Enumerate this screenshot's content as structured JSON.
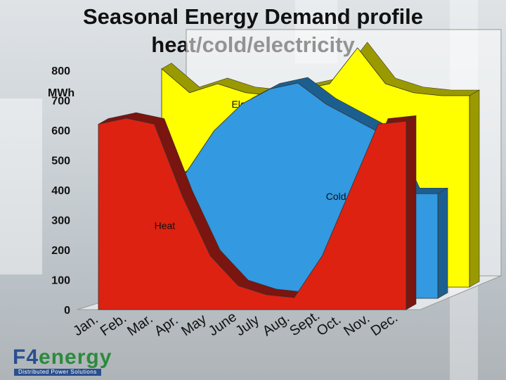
{
  "title_line1": "Seasonal Energy Demand profile",
  "title_line2": "heat/cold/electricity",
  "logo": {
    "main_prefix": "F4",
    "main_suffix": "energy",
    "tagline": "Distributed Power Solutions"
  },
  "chart_data": {
    "type": "area",
    "title": "Seasonal Energy Demand profile heat/cold/electricity",
    "ylabel": "MWh",
    "xlabel": "",
    "ylim": [
      0,
      800
    ],
    "yticks": [
      0,
      100,
      200,
      300,
      400,
      500,
      600,
      700,
      800
    ],
    "categories": [
      "Jan.",
      "Feb.",
      "Mar.",
      "Apr.",
      "May",
      "June",
      "July",
      "Aug.",
      "Sept.",
      "Oct.",
      "Nov.",
      "Dec."
    ],
    "series": [
      {
        "name": "Electricity",
        "color": "#ffff00",
        "values": [
          730,
          650,
          680,
          650,
          640,
          660,
          680,
          800,
          680,
          650,
          640,
          640
        ]
      },
      {
        "name": "Cold",
        "color": "#3399e0",
        "values": [
          380,
          380,
          420,
          560,
          650,
          700,
          720,
          650,
          600,
          550,
          350,
          350
        ]
      },
      {
        "name": "Heat",
        "color": "#dd2211",
        "values": [
          620,
          640,
          620,
          380,
          180,
          80,
          50,
          40,
          180,
          400,
          620,
          630
        ]
      }
    ]
  }
}
